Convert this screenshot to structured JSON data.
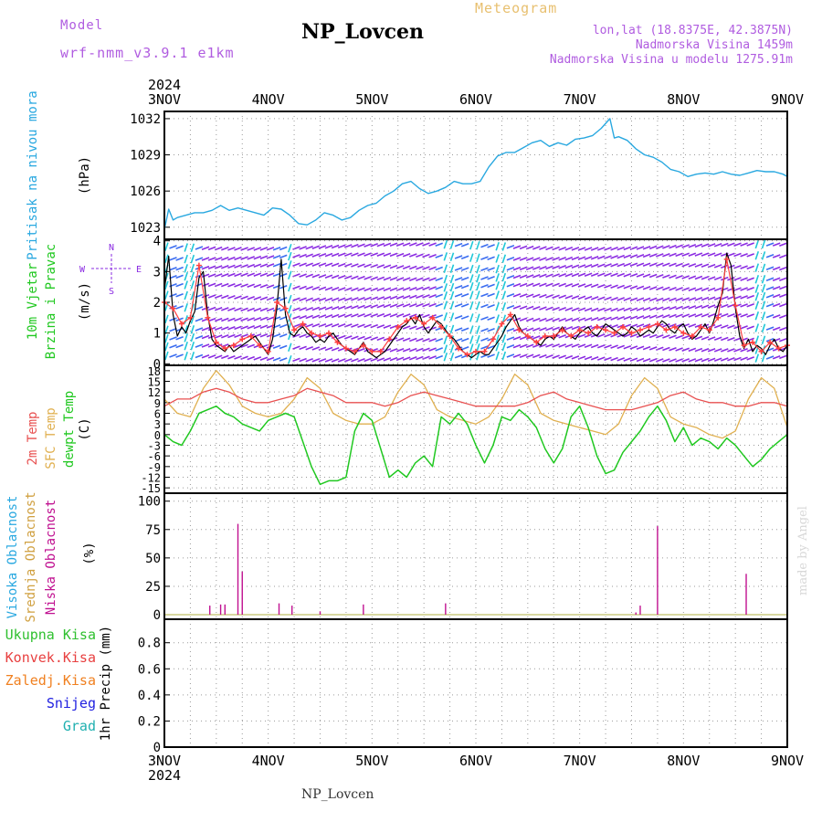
{
  "header": {
    "model_label": "Model",
    "model_name": "wrf-nmm_v3.9.1 e1km",
    "station": "NP_Lovcen",
    "meteogram": "Meteogram",
    "lonlat": "lon,lat (18.8375E, 42.3875N)",
    "altitude": "Nadmorska Visina 1459m",
    "model_altitude": "Nadmorska Visina u modelu 1275.91m"
  },
  "footer": {
    "station": "NP_Lovcen",
    "credit": "made by Angel"
  },
  "colors": {
    "pressure": "#29a8e0",
    "wind_cyan": "#20c8d8",
    "wind_blue": "#3a6cf0",
    "wind_purple": "#8a2be2",
    "speed_line": "#000000",
    "gust_marker": "#ff4040",
    "temp2m": "#e85050",
    "sfc_temp": "#e0b050",
    "dewpt": "#20c820",
    "low_cloud": "#c01090",
    "mid_cloud": "#d0a040",
    "high_cloud": "#29a8e0",
    "rain_total": "#30c030",
    "rain_conv": "#e84040",
    "rain_frozen": "#f08020",
    "snow": "#2020e0",
    "hail": "#20b0b0"
  },
  "chart_data": [
    {
      "type": "line",
      "title": "",
      "ylabel_rot": "Pritisak na nivou mora",
      "ylabel_unit": "(hPa)",
      "year": "2024",
      "x_ticks": [
        "3NOV",
        "4NOV",
        "5NOV",
        "6NOV",
        "7NOV",
        "8NOV",
        "9NOV"
      ],
      "x_range_hours": [
        0,
        144
      ],
      "yticks": [
        "1023",
        "1026",
        "1029",
        "1032"
      ],
      "ylim": [
        1022.0,
        1032.6
      ],
      "grid": true,
      "series": [
        {
          "x": [
            0,
            1,
            2,
            3,
            5,
            7,
            9,
            11,
            13,
            15,
            17,
            19,
            21,
            23,
            25,
            27,
            29,
            31,
            33,
            35,
            37,
            39,
            41,
            43,
            45,
            47,
            49,
            51,
            53,
            55,
            57,
            59,
            61,
            63,
            65,
            67,
            69,
            71,
            73,
            75,
            77,
            79,
            81,
            83,
            85,
            87,
            89,
            91,
            93,
            95,
            97,
            99,
            101,
            103,
            104,
            105,
            107,
            109,
            111,
            113,
            115,
            117,
            119,
            121,
            123,
            125,
            127,
            129,
            131,
            133,
            135,
            137,
            139,
            141,
            143,
            144
          ],
          "y": [
            1022.8,
            1024.5,
            1023.6,
            1023.8,
            1024.0,
            1024.2,
            1024.2,
            1024.4,
            1024.8,
            1024.4,
            1024.6,
            1024.4,
            1024.2,
            1024.0,
            1024.6,
            1024.5,
            1024.0,
            1023.3,
            1023.2,
            1023.6,
            1024.2,
            1024.0,
            1023.6,
            1023.8,
            1024.4,
            1024.8,
            1025.0,
            1025.6,
            1026.0,
            1026.6,
            1026.8,
            1026.2,
            1025.8,
            1026.0,
            1026.3,
            1026.8,
            1026.6,
            1026.6,
            1026.8,
            1028.0,
            1028.9,
            1029.2,
            1029.2,
            1029.6,
            1030.0,
            1030.2,
            1029.7,
            1030.0,
            1029.8,
            1030.3,
            1030.4,
            1030.6,
            1031.2,
            1032.0,
            1030.4,
            1030.5,
            1030.2,
            1029.5,
            1029.0,
            1028.8,
            1028.4,
            1027.8,
            1027.6,
            1027.2,
            1027.4,
            1027.5,
            1027.4,
            1027.6,
            1027.4,
            1027.3,
            1027.5,
            1027.7,
            1027.6,
            1027.6,
            1027.4,
            1027.2
          ]
        }
      ]
    },
    {
      "type": "line",
      "title": "",
      "ylabel_rot1": "10m Vjetar",
      "ylabel_rot2": "Brzina i Pravac",
      "ylabel_unit": "(m/s)",
      "compass": {
        "n": "N",
        "s": "S",
        "e": "E",
        "w": "W"
      },
      "yticks": [
        "0",
        "1",
        "2",
        "3",
        "4"
      ],
      "ylim": [
        -0.05,
        4.05
      ],
      "grid": true,
      "series": [
        {
          "name": "speed",
          "x": [
            0,
            1,
            2,
            3,
            4,
            5,
            6,
            7,
            8,
            9,
            10,
            11,
            12,
            13,
            14,
            15,
            16,
            17,
            18,
            19,
            20,
            21,
            22,
            23,
            24,
            25,
            26,
            27,
            28,
            29,
            30,
            31,
            32,
            33,
            34,
            35,
            36,
            37,
            38,
            39,
            40,
            41,
            42,
            43,
            44,
            45,
            46,
            47,
            48,
            49,
            50,
            51,
            52,
            53,
            54,
            55,
            56,
            57,
            58,
            59,
            60,
            61,
            62,
            63,
            64,
            65,
            66,
            67,
            68,
            69,
            70,
            71,
            72,
            73,
            74,
            75,
            76,
            77,
            78,
            79,
            80,
            81,
            82,
            83,
            84,
            85,
            86,
            87,
            88,
            89,
            90,
            91,
            92,
            93,
            94,
            95,
            96,
            97,
            98,
            99,
            100,
            101,
            102,
            103,
            104,
            105,
            106,
            107,
            108,
            109,
            110,
            111,
            112,
            113,
            114,
            115,
            116,
            117,
            118,
            119,
            120,
            121,
            122,
            123,
            124,
            125,
            126,
            127,
            128,
            129,
            130,
            131,
            132,
            133,
            134,
            135,
            136,
            137,
            138,
            139,
            140,
            141,
            142,
            143,
            144
          ],
          "y": [
            2.4,
            3.5,
            1.6,
            0.9,
            1.2,
            1.0,
            1.4,
            1.7,
            2.8,
            3.0,
            1.6,
            0.8,
            0.6,
            0.5,
            0.4,
            0.6,
            0.4,
            0.5,
            0.6,
            0.7,
            0.8,
            0.9,
            0.7,
            0.5,
            0.3,
            0.8,
            1.8,
            3.4,
            1.6,
            1.0,
            0.9,
            1.1,
            1.2,
            1.0,
            0.9,
            0.7,
            0.8,
            0.7,
            0.9,
            1.0,
            0.8,
            0.6,
            0.5,
            0.4,
            0.3,
            0.5,
            0.7,
            0.4,
            0.3,
            0.2,
            0.3,
            0.4,
            0.6,
            0.8,
            1.0,
            1.2,
            1.3,
            1.5,
            1.3,
            1.6,
            1.2,
            1.0,
            1.2,
            1.4,
            1.3,
            1.1,
            0.9,
            0.8,
            0.6,
            0.4,
            0.3,
            0.2,
            0.3,
            0.4,
            0.3,
            0.3,
            0.5,
            0.7,
            0.9,
            1.2,
            1.4,
            1.6,
            1.2,
            1.0,
            0.9,
            0.8,
            0.7,
            0.6,
            0.8,
            0.9,
            0.8,
            1.0,
            1.2,
            1.0,
            0.9,
            0.8,
            1.0,
            1.1,
            1.2,
            1.0,
            0.9,
            1.1,
            1.3,
            1.2,
            1.1,
            1.0,
            0.9,
            1.0,
            1.2,
            1.1,
            0.9,
            1.0,
            1.1,
            1.0,
            1.2,
            1.4,
            1.3,
            1.1,
            1.0,
            1.2,
            1.3,
            1.0,
            0.8,
            0.9,
            1.1,
            1.3,
            1.0,
            1.4,
            1.9,
            2.3,
            3.6,
            3.2,
            1.8,
            0.9,
            0.5,
            0.8,
            0.4,
            0.6,
            0.5,
            0.3,
            0.6,
            0.8,
            0.5,
            0.4,
            0.6
          ]
        },
        {
          "name": "gust",
          "x": [
            0,
            2,
            4,
            6,
            8,
            10,
            12,
            14,
            16,
            18,
            20,
            22,
            24,
            26,
            28,
            30,
            32,
            34,
            36,
            38,
            40,
            42,
            44,
            46,
            48,
            50,
            52,
            54,
            56,
            58,
            60,
            62,
            64,
            66,
            68,
            70,
            72,
            74,
            76,
            78,
            80,
            82,
            84,
            86,
            88,
            90,
            92,
            94,
            96,
            98,
            100,
            102,
            104,
            106,
            108,
            110,
            112,
            114,
            116,
            118,
            120,
            122,
            124,
            126,
            128,
            130,
            132,
            134,
            136,
            138,
            140,
            142,
            144
          ],
          "y": [
            2.0,
            1.8,
            1.3,
            1.5,
            3.2,
            1.5,
            0.7,
            0.5,
            0.6,
            0.8,
            0.9,
            0.6,
            0.4,
            2.0,
            1.8,
            1.1,
            1.3,
            1.0,
            0.9,
            1.0,
            0.7,
            0.5,
            0.4,
            0.6,
            0.4,
            0.4,
            0.8,
            1.2,
            1.4,
            1.5,
            1.3,
            1.5,
            1.2,
            0.9,
            0.5,
            0.3,
            0.4,
            0.4,
            0.8,
            1.3,
            1.6,
            1.1,
            0.9,
            0.7,
            0.9,
            0.9,
            1.1,
            0.9,
            1.1,
            1.0,
            1.2,
            1.1,
            1.0,
            1.2,
            1.0,
            1.1,
            1.2,
            1.3,
            1.1,
            1.2,
            1.0,
            0.9,
            1.2,
            1.1,
            1.5,
            3.4,
            1.9,
            0.6,
            0.7,
            0.4,
            0.7,
            0.5,
            0.6
          ]
        }
      ]
    },
    {
      "type": "line",
      "title": "",
      "ylabel_rot1": "2m Temp",
      "ylabel_rot2": "SFC Temp",
      "ylabel_rot3": "dewpt Temp",
      "ylabel_unit": "(C)",
      "yticks": [
        "-15",
        "-12",
        "-9",
        "-6",
        "-3",
        "0",
        "3",
        "6",
        "9",
        "12",
        "15",
        "18"
      ],
      "ylim": [
        -16.5,
        19.5
      ],
      "grid": true,
      "series": [
        {
          "name": "2m Temp",
          "x": [
            0,
            3,
            6,
            9,
            12,
            15,
            18,
            21,
            24,
            27,
            30,
            33,
            36,
            39,
            42,
            45,
            48,
            51,
            54,
            57,
            60,
            63,
            66,
            69,
            72,
            75,
            78,
            81,
            84,
            87,
            90,
            93,
            96,
            99,
            102,
            105,
            108,
            111,
            114,
            117,
            120,
            123,
            126,
            129,
            132,
            135,
            138,
            141,
            144
          ],
          "y": [
            8,
            10,
            10,
            12,
            13,
            12,
            10,
            9,
            9,
            10,
            11,
            13,
            12,
            11,
            9,
            9,
            9,
            8,
            9,
            11,
            12,
            11,
            10,
            9,
            8,
            8,
            8,
            8,
            9,
            11,
            12,
            10,
            9,
            8,
            7,
            7,
            7,
            8,
            9,
            11,
            12,
            10,
            9,
            9,
            8,
            8,
            9,
            9,
            8
          ]
        },
        {
          "name": "SFC Temp",
          "x": [
            0,
            3,
            6,
            9,
            12,
            15,
            18,
            21,
            24,
            27,
            30,
            33,
            36,
            39,
            42,
            45,
            48,
            51,
            54,
            57,
            60,
            63,
            66,
            69,
            72,
            75,
            78,
            81,
            84,
            87,
            90,
            93,
            96,
            99,
            102,
            105,
            108,
            111,
            114,
            117,
            120,
            123,
            126,
            129,
            132,
            135,
            138,
            141,
            144
          ],
          "y": [
            10,
            6,
            5,
            13,
            18,
            14,
            8,
            6,
            5,
            6,
            10,
            16,
            13,
            6,
            4,
            3,
            3,
            5,
            12,
            17,
            14,
            7,
            5,
            4,
            3,
            5,
            10,
            17,
            14,
            6,
            4,
            3,
            2,
            1,
            0,
            3,
            11,
            16,
            13,
            5,
            3,
            2,
            0,
            -1,
            1,
            10,
            16,
            13,
            2
          ]
        },
        {
          "name": "dewpt Temp",
          "x": [
            0,
            2,
            4,
            6,
            8,
            10,
            12,
            14,
            16,
            18,
            20,
            22,
            24,
            26,
            28,
            30,
            32,
            34,
            36,
            38,
            40,
            42,
            44,
            46,
            48,
            50,
            52,
            54,
            56,
            58,
            60,
            62,
            64,
            66,
            68,
            70,
            72,
            74,
            76,
            78,
            80,
            82,
            84,
            86,
            88,
            90,
            92,
            94,
            96,
            98,
            100,
            102,
            104,
            106,
            108,
            110,
            112,
            114,
            116,
            118,
            120,
            122,
            124,
            126,
            128,
            130,
            132,
            134,
            136,
            138,
            140,
            142,
            144
          ],
          "y": [
            0,
            -2,
            -3,
            1,
            6,
            7,
            8,
            6,
            5,
            3,
            2,
            1,
            4,
            5,
            6,
            5,
            -2,
            -9,
            -14,
            -13,
            -13,
            -12,
            1,
            6,
            4,
            -4,
            -12,
            -10,
            -12,
            -8,
            -6,
            -9,
            5,
            3,
            6,
            3,
            -3,
            -8,
            -3,
            5,
            4,
            7,
            5,
            2,
            -4,
            -8,
            -4,
            5,
            8,
            2,
            -6,
            -11,
            -10,
            -5,
            -2,
            1,
            5,
            8,
            4,
            -2,
            2,
            -3,
            -1,
            -2,
            -4,
            -1,
            -3,
            -6,
            -9,
            -7,
            -4,
            -2,
            0
          ]
        }
      ]
    },
    {
      "type": "bar",
      "title": "",
      "ylabel_rot1": "Visoka Oblacnost",
      "ylabel_rot2": "Srednja Oblacnost",
      "ylabel_rot3": "Niska Oblacnost",
      "ylabel_unit": "(%)",
      "yticks": [
        "0",
        "25",
        "50",
        "75",
        "100"
      ],
      "ylim": [
        -4,
        107
      ],
      "grid": true,
      "series": [
        {
          "name": "Niska Oblacnost",
          "x": [
            10.5,
            13.0,
            14.0,
            17.0,
            18.0,
            26.5,
            29.5,
            36.0,
            46.0,
            65.0,
            109.0,
            110.0,
            114.0,
            134.5
          ],
          "y": [
            8,
            9,
            9,
            80,
            38,
            10,
            8,
            3,
            9,
            10,
            2,
            8,
            78,
            36
          ]
        }
      ]
    },
    {
      "type": "line",
      "title": "",
      "ylabel_rot": "1hr Precip (mm)",
      "legend": [
        "Ukupna Kisa",
        "Konvek.Kisa",
        "Zaledj.Kisa",
        "Snijeg",
        "Grad"
      ],
      "yticks": [
        "0",
        "0.2",
        "0.4",
        "0.6",
        "0.8"
      ],
      "ylim": [
        0,
        0.98
      ],
      "grid": true,
      "series": [
        {
          "name": "Ukupna Kisa",
          "x": [
            0,
            144
          ],
          "y": [
            0,
            0
          ]
        }
      ],
      "year": "2024"
    }
  ]
}
